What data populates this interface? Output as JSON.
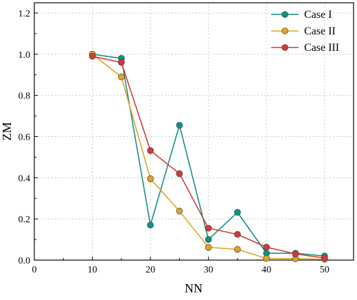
{
  "chart_data": {
    "type": "line",
    "xlabel": "NN",
    "ylabel": "ZM",
    "xlim": [
      0,
      55
    ],
    "ylim": [
      0,
      1.25
    ],
    "x_ticks": [
      "0",
      "10",
      "20",
      "30",
      "40",
      "50"
    ],
    "x_tick_values": [
      0,
      10,
      20,
      30,
      40,
      50
    ],
    "y_ticks": [
      "0.0",
      "0.2",
      "0.4",
      "0.6",
      "0.8",
      "1.0",
      "1.2"
    ],
    "y_tick_values": [
      0,
      0.2,
      0.4,
      0.6,
      0.8,
      1.0,
      1.2
    ],
    "grid": true,
    "legend_position": "top-right",
    "x": [
      10,
      15,
      20,
      25,
      30,
      35,
      40,
      45,
      50
    ],
    "series": [
      {
        "name": "Case I",
        "color": "#138f86",
        "values": [
          1.0,
          0.98,
          0.17,
          0.655,
          0.1,
          0.232,
          0.033,
          0.033,
          0.02
        ]
      },
      {
        "name": "Case II",
        "color": "#e0a227",
        "values": [
          1.0,
          0.89,
          0.395,
          0.238,
          0.062,
          0.052,
          0.008,
          0.007,
          0.004
        ]
      },
      {
        "name": "Case III",
        "color": "#d23a3a",
        "values": [
          0.99,
          0.96,
          0.532,
          0.42,
          0.155,
          0.125,
          0.063,
          0.03,
          0.01
        ]
      }
    ]
  }
}
